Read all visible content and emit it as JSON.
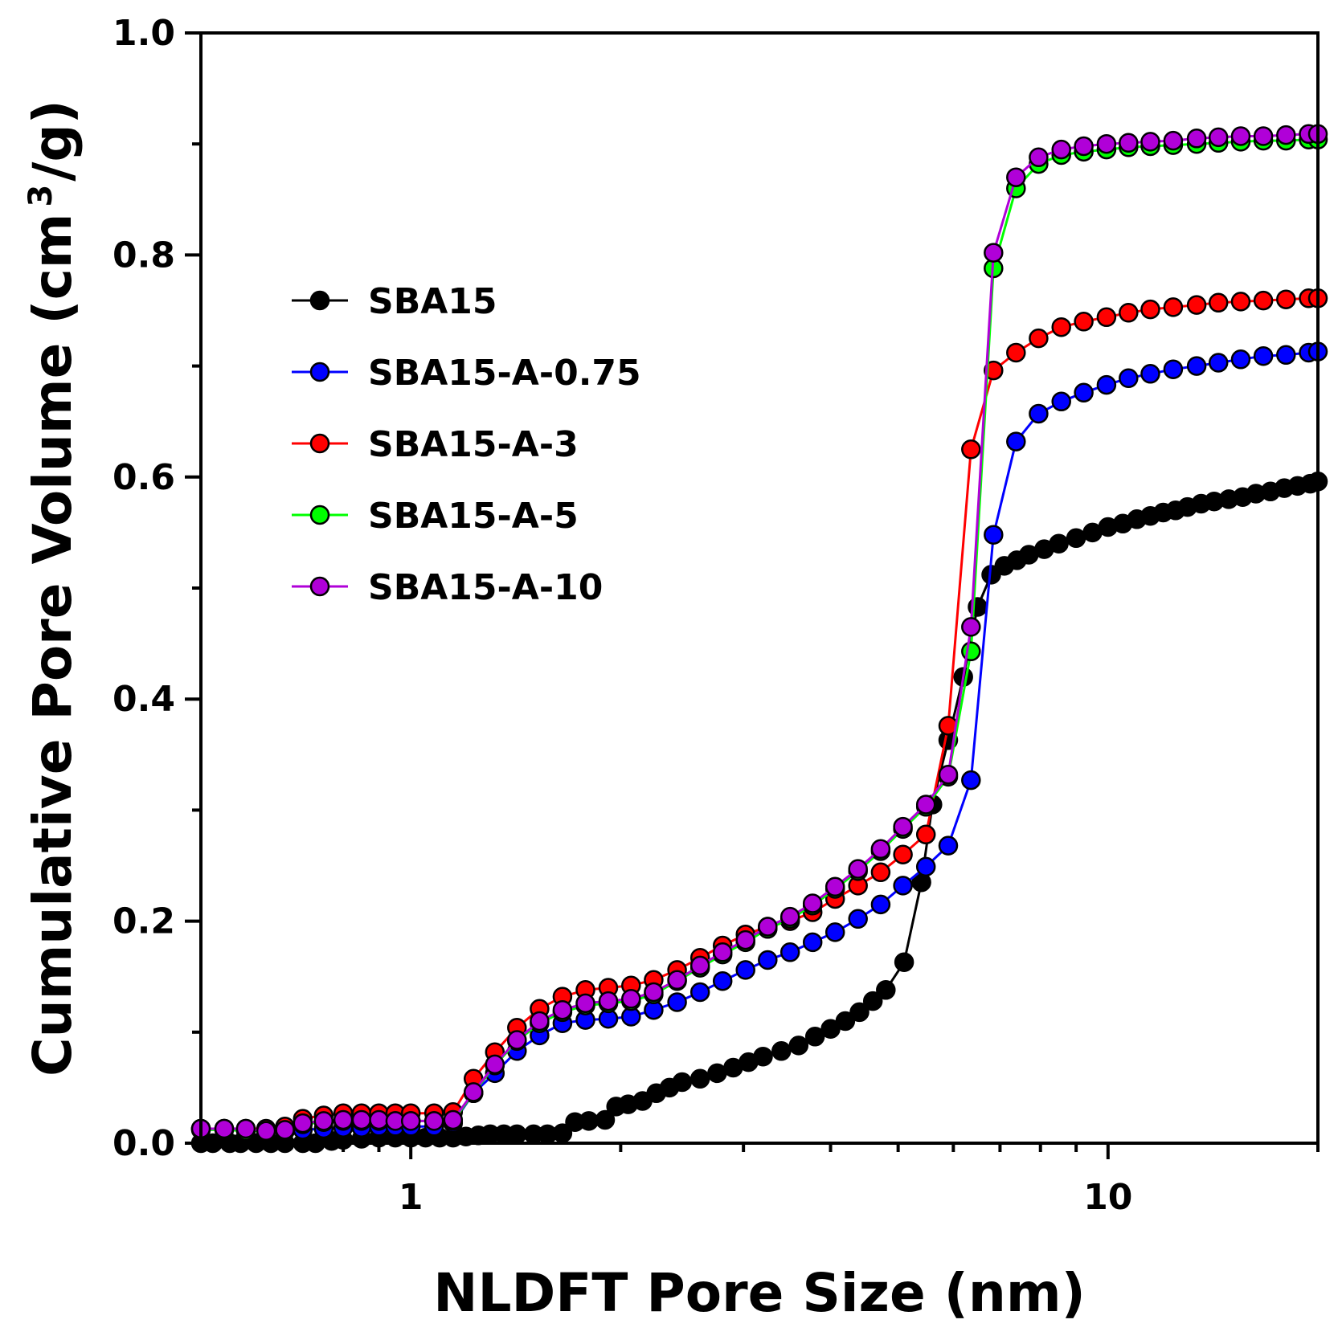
{
  "chart_data": {
    "type": "line",
    "title": "",
    "xlabel": "NLDFT Pore Size (nm)",
    "ylabel_main": "Cumulative Pore Volume (cm",
    "ylabel_sup": "3",
    "ylabel_end": "/g)",
    "xscale": "log",
    "xlim": [
      0.5,
      20
    ],
    "ylim": [
      0.0,
      1.0
    ],
    "x_ticks": [
      1,
      10
    ],
    "x_tick_labels": [
      "1",
      "10"
    ],
    "y_major_ticks": [
      0.0,
      0.2,
      0.4,
      0.6,
      0.8,
      1.0
    ],
    "y_tick_labels": [
      "0.0",
      "0.2",
      "0.4",
      "0.6",
      "0.8",
      "1.0"
    ],
    "y_minor_ticks": [
      0.1,
      0.3,
      0.5,
      0.7,
      0.9
    ],
    "grid": false,
    "legend_position": "upper-left",
    "series": [
      {
        "name": "SBA15",
        "color": "#000000",
        "points": [
          [
            0.5,
            0.0
          ],
          [
            0.52,
            0.0
          ],
          [
            0.55,
            0.0
          ],
          [
            0.57,
            0.0
          ],
          [
            0.6,
            0.0
          ],
          [
            0.63,
            0.0
          ],
          [
            0.66,
            0.0
          ],
          [
            0.7,
            0.0
          ],
          [
            0.73,
            0.0
          ],
          [
            0.77,
            0.002
          ],
          [
            0.8,
            0.003
          ],
          [
            0.85,
            0.004
          ],
          [
            0.9,
            0.005
          ],
          [
            0.95,
            0.005
          ],
          [
            1.0,
            0.005
          ],
          [
            1.05,
            0.005
          ],
          [
            1.1,
            0.005
          ],
          [
            1.15,
            0.005
          ],
          [
            1.2,
            0.006
          ],
          [
            1.25,
            0.007
          ],
          [
            1.3,
            0.008
          ],
          [
            1.36,
            0.008
          ],
          [
            1.42,
            0.008
          ],
          [
            1.5,
            0.008
          ],
          [
            1.57,
            0.008
          ],
          [
            1.65,
            0.009
          ],
          [
            1.72,
            0.019
          ],
          [
            1.8,
            0.02
          ],
          [
            1.9,
            0.021
          ],
          [
            1.97,
            0.033
          ],
          [
            2.05,
            0.035
          ],
          [
            2.15,
            0.038
          ],
          [
            2.25,
            0.045
          ],
          [
            2.35,
            0.05
          ],
          [
            2.45,
            0.055
          ],
          [
            2.6,
            0.058
          ],
          [
            2.75,
            0.063
          ],
          [
            2.9,
            0.068
          ],
          [
            3.05,
            0.073
          ],
          [
            3.2,
            0.078
          ],
          [
            3.4,
            0.083
          ],
          [
            3.6,
            0.088
          ],
          [
            3.8,
            0.096
          ],
          [
            4.0,
            0.103
          ],
          [
            4.2,
            0.11
          ],
          [
            4.4,
            0.118
          ],
          [
            4.6,
            0.128
          ],
          [
            4.8,
            0.138
          ],
          [
            5.1,
            0.163
          ],
          [
            5.4,
            0.235
          ],
          [
            5.6,
            0.305
          ],
          [
            5.9,
            0.363
          ],
          [
            6.2,
            0.42
          ],
          [
            6.5,
            0.483
          ],
          [
            6.8,
            0.512
          ],
          [
            7.1,
            0.52
          ],
          [
            7.4,
            0.525
          ],
          [
            7.7,
            0.53
          ],
          [
            8.1,
            0.535
          ],
          [
            8.5,
            0.54
          ],
          [
            9.0,
            0.545
          ],
          [
            9.5,
            0.55
          ],
          [
            10.0,
            0.555
          ],
          [
            10.5,
            0.558
          ],
          [
            11.0,
            0.562
          ],
          [
            11.5,
            0.565
          ],
          [
            12.0,
            0.568
          ],
          [
            12.5,
            0.57
          ],
          [
            13.0,
            0.573
          ],
          [
            13.6,
            0.576
          ],
          [
            14.2,
            0.578
          ],
          [
            14.9,
            0.58
          ],
          [
            15.6,
            0.582
          ],
          [
            16.3,
            0.585
          ],
          [
            17.1,
            0.587
          ],
          [
            17.9,
            0.59
          ],
          [
            18.7,
            0.592
          ],
          [
            19.5,
            0.594
          ],
          [
            20.0,
            0.596
          ]
        ]
      },
      {
        "name": "SBA15-A-0.75",
        "color": "#0000ff",
        "points": [
          [
            0.5,
            0.013
          ],
          [
            0.54,
            0.013
          ],
          [
            0.58,
            0.012
          ],
          [
            0.62,
            0.011
          ],
          [
            0.66,
            0.011
          ],
          [
            0.7,
            0.012
          ],
          [
            0.75,
            0.013
          ],
          [
            0.8,
            0.014
          ],
          [
            0.85,
            0.014
          ],
          [
            0.9,
            0.015
          ],
          [
            0.95,
            0.015
          ],
          [
            1.0,
            0.015
          ],
          [
            1.08,
            0.015
          ],
          [
            1.15,
            0.018
          ],
          [
            1.23,
            0.045
          ],
          [
            1.32,
            0.063
          ],
          [
            1.42,
            0.083
          ],
          [
            1.53,
            0.097
          ],
          [
            1.65,
            0.108
          ],
          [
            1.78,
            0.111
          ],
          [
            1.92,
            0.112
          ],
          [
            2.07,
            0.114
          ],
          [
            2.23,
            0.12
          ],
          [
            2.41,
            0.127
          ],
          [
            2.6,
            0.136
          ],
          [
            2.8,
            0.146
          ],
          [
            3.02,
            0.156
          ],
          [
            3.25,
            0.165
          ],
          [
            3.5,
            0.172
          ],
          [
            3.77,
            0.181
          ],
          [
            4.06,
            0.19
          ],
          [
            4.38,
            0.202
          ],
          [
            4.72,
            0.215
          ],
          [
            5.08,
            0.232
          ],
          [
            5.48,
            0.249
          ],
          [
            5.9,
            0.268
          ],
          [
            6.36,
            0.327
          ],
          [
            6.85,
            0.548
          ],
          [
            7.38,
            0.632
          ],
          [
            7.95,
            0.657
          ],
          [
            8.57,
            0.668
          ],
          [
            9.23,
            0.676
          ],
          [
            9.95,
            0.683
          ],
          [
            10.7,
            0.689
          ],
          [
            11.5,
            0.693
          ],
          [
            12.4,
            0.697
          ],
          [
            13.4,
            0.7
          ],
          [
            14.4,
            0.703
          ],
          [
            15.5,
            0.706
          ],
          [
            16.7,
            0.709
          ],
          [
            18.0,
            0.71
          ],
          [
            19.4,
            0.712
          ],
          [
            20.0,
            0.713
          ]
        ]
      },
      {
        "name": "SBA15-A-3",
        "color": "#ff0000",
        "points": [
          [
            0.5,
            0.013
          ],
          [
            0.54,
            0.013
          ],
          [
            0.58,
            0.013
          ],
          [
            0.62,
            0.013
          ],
          [
            0.66,
            0.015
          ],
          [
            0.7,
            0.022
          ],
          [
            0.75,
            0.025
          ],
          [
            0.8,
            0.027
          ],
          [
            0.85,
            0.027
          ],
          [
            0.9,
            0.027
          ],
          [
            0.95,
            0.027
          ],
          [
            1.0,
            0.027
          ],
          [
            1.08,
            0.027
          ],
          [
            1.15,
            0.028
          ],
          [
            1.23,
            0.058
          ],
          [
            1.32,
            0.082
          ],
          [
            1.42,
            0.104
          ],
          [
            1.53,
            0.121
          ],
          [
            1.65,
            0.132
          ],
          [
            1.78,
            0.138
          ],
          [
            1.92,
            0.14
          ],
          [
            2.07,
            0.142
          ],
          [
            2.23,
            0.147
          ],
          [
            2.41,
            0.156
          ],
          [
            2.6,
            0.167
          ],
          [
            2.8,
            0.178
          ],
          [
            3.02,
            0.188
          ],
          [
            3.25,
            0.195
          ],
          [
            3.5,
            0.2
          ],
          [
            3.77,
            0.208
          ],
          [
            4.06,
            0.22
          ],
          [
            4.38,
            0.232
          ],
          [
            4.72,
            0.244
          ],
          [
            5.08,
            0.26
          ],
          [
            5.48,
            0.278
          ],
          [
            5.9,
            0.376
          ],
          [
            6.36,
            0.625
          ],
          [
            6.85,
            0.696
          ],
          [
            7.38,
            0.712
          ],
          [
            7.95,
            0.725
          ],
          [
            8.57,
            0.735
          ],
          [
            9.23,
            0.74
          ],
          [
            9.95,
            0.744
          ],
          [
            10.7,
            0.748
          ],
          [
            11.5,
            0.751
          ],
          [
            12.4,
            0.753
          ],
          [
            13.4,
            0.755
          ],
          [
            14.4,
            0.757
          ],
          [
            15.5,
            0.758
          ],
          [
            16.7,
            0.759
          ],
          [
            18.0,
            0.76
          ],
          [
            19.4,
            0.761
          ],
          [
            20.0,
            0.761
          ]
        ]
      },
      {
        "name": "SBA15-A-5",
        "color": "#00ff00",
        "points": [
          [
            0.5,
            0.012
          ],
          [
            0.54,
            0.012
          ],
          [
            0.58,
            0.011
          ],
          [
            0.62,
            0.011
          ],
          [
            0.66,
            0.011
          ],
          [
            0.7,
            0.017
          ],
          [
            0.75,
            0.019
          ],
          [
            0.8,
            0.02
          ],
          [
            0.85,
            0.02
          ],
          [
            0.9,
            0.02
          ],
          [
            0.95,
            0.02
          ],
          [
            1.0,
            0.02
          ],
          [
            1.08,
            0.02
          ],
          [
            1.15,
            0.02
          ],
          [
            1.23,
            0.045
          ],
          [
            1.32,
            0.07
          ],
          [
            1.42,
            0.092
          ],
          [
            1.53,
            0.108
          ],
          [
            1.65,
            0.118
          ],
          [
            1.78,
            0.124
          ],
          [
            1.92,
            0.126
          ],
          [
            2.07,
            0.128
          ],
          [
            2.23,
            0.134
          ],
          [
            2.41,
            0.146
          ],
          [
            2.6,
            0.158
          ],
          [
            2.8,
            0.17
          ],
          [
            3.02,
            0.181
          ],
          [
            3.25,
            0.193
          ],
          [
            3.5,
            0.202
          ],
          [
            3.77,
            0.214
          ],
          [
            4.06,
            0.229
          ],
          [
            4.38,
            0.245
          ],
          [
            4.72,
            0.263
          ],
          [
            5.08,
            0.283
          ],
          [
            5.48,
            0.303
          ],
          [
            5.9,
            0.33
          ],
          [
            6.36,
            0.443
          ],
          [
            6.85,
            0.788
          ],
          [
            7.38,
            0.86
          ],
          [
            7.95,
            0.882
          ],
          [
            8.57,
            0.89
          ],
          [
            9.23,
            0.893
          ],
          [
            9.95,
            0.895
          ],
          [
            10.7,
            0.897
          ],
          [
            11.5,
            0.898
          ],
          [
            12.4,
            0.899
          ],
          [
            13.4,
            0.9
          ],
          [
            14.4,
            0.901
          ],
          [
            15.5,
            0.902
          ],
          [
            16.7,
            0.903
          ],
          [
            18.0,
            0.903
          ],
          [
            19.4,
            0.904
          ],
          [
            20.0,
            0.904
          ]
        ]
      },
      {
        "name": "SBA15-A-10",
        "color": "#b000d8",
        "points": [
          [
            0.5,
            0.013
          ],
          [
            0.54,
            0.013
          ],
          [
            0.58,
            0.013
          ],
          [
            0.62,
            0.011
          ],
          [
            0.66,
            0.012
          ],
          [
            0.7,
            0.018
          ],
          [
            0.75,
            0.02
          ],
          [
            0.8,
            0.021
          ],
          [
            0.85,
            0.021
          ],
          [
            0.9,
            0.021
          ],
          [
            0.95,
            0.02
          ],
          [
            1.0,
            0.02
          ],
          [
            1.08,
            0.02
          ],
          [
            1.15,
            0.021
          ],
          [
            1.23,
            0.046
          ],
          [
            1.32,
            0.071
          ],
          [
            1.42,
            0.093
          ],
          [
            1.53,
            0.11
          ],
          [
            1.65,
            0.12
          ],
          [
            1.78,
            0.126
          ],
          [
            1.92,
            0.128
          ],
          [
            2.07,
            0.13
          ],
          [
            2.23,
            0.136
          ],
          [
            2.41,
            0.147
          ],
          [
            2.6,
            0.16
          ],
          [
            2.8,
            0.172
          ],
          [
            3.02,
            0.183
          ],
          [
            3.25,
            0.195
          ],
          [
            3.5,
            0.204
          ],
          [
            3.77,
            0.216
          ],
          [
            4.06,
            0.231
          ],
          [
            4.38,
            0.247
          ],
          [
            4.72,
            0.265
          ],
          [
            5.08,
            0.285
          ],
          [
            5.48,
            0.305
          ],
          [
            5.9,
            0.332
          ],
          [
            6.36,
            0.465
          ],
          [
            6.85,
            0.802
          ],
          [
            7.38,
            0.87
          ],
          [
            7.95,
            0.888
          ],
          [
            8.57,
            0.895
          ],
          [
            9.23,
            0.898
          ],
          [
            9.95,
            0.9
          ],
          [
            10.7,
            0.901
          ],
          [
            11.5,
            0.902
          ],
          [
            12.4,
            0.903
          ],
          [
            13.4,
            0.905
          ],
          [
            14.4,
            0.906
          ],
          [
            15.5,
            0.907
          ],
          [
            16.7,
            0.907
          ],
          [
            18.0,
            0.908
          ],
          [
            19.4,
            0.909
          ],
          [
            20.0,
            0.909
          ]
        ]
      }
    ]
  }
}
